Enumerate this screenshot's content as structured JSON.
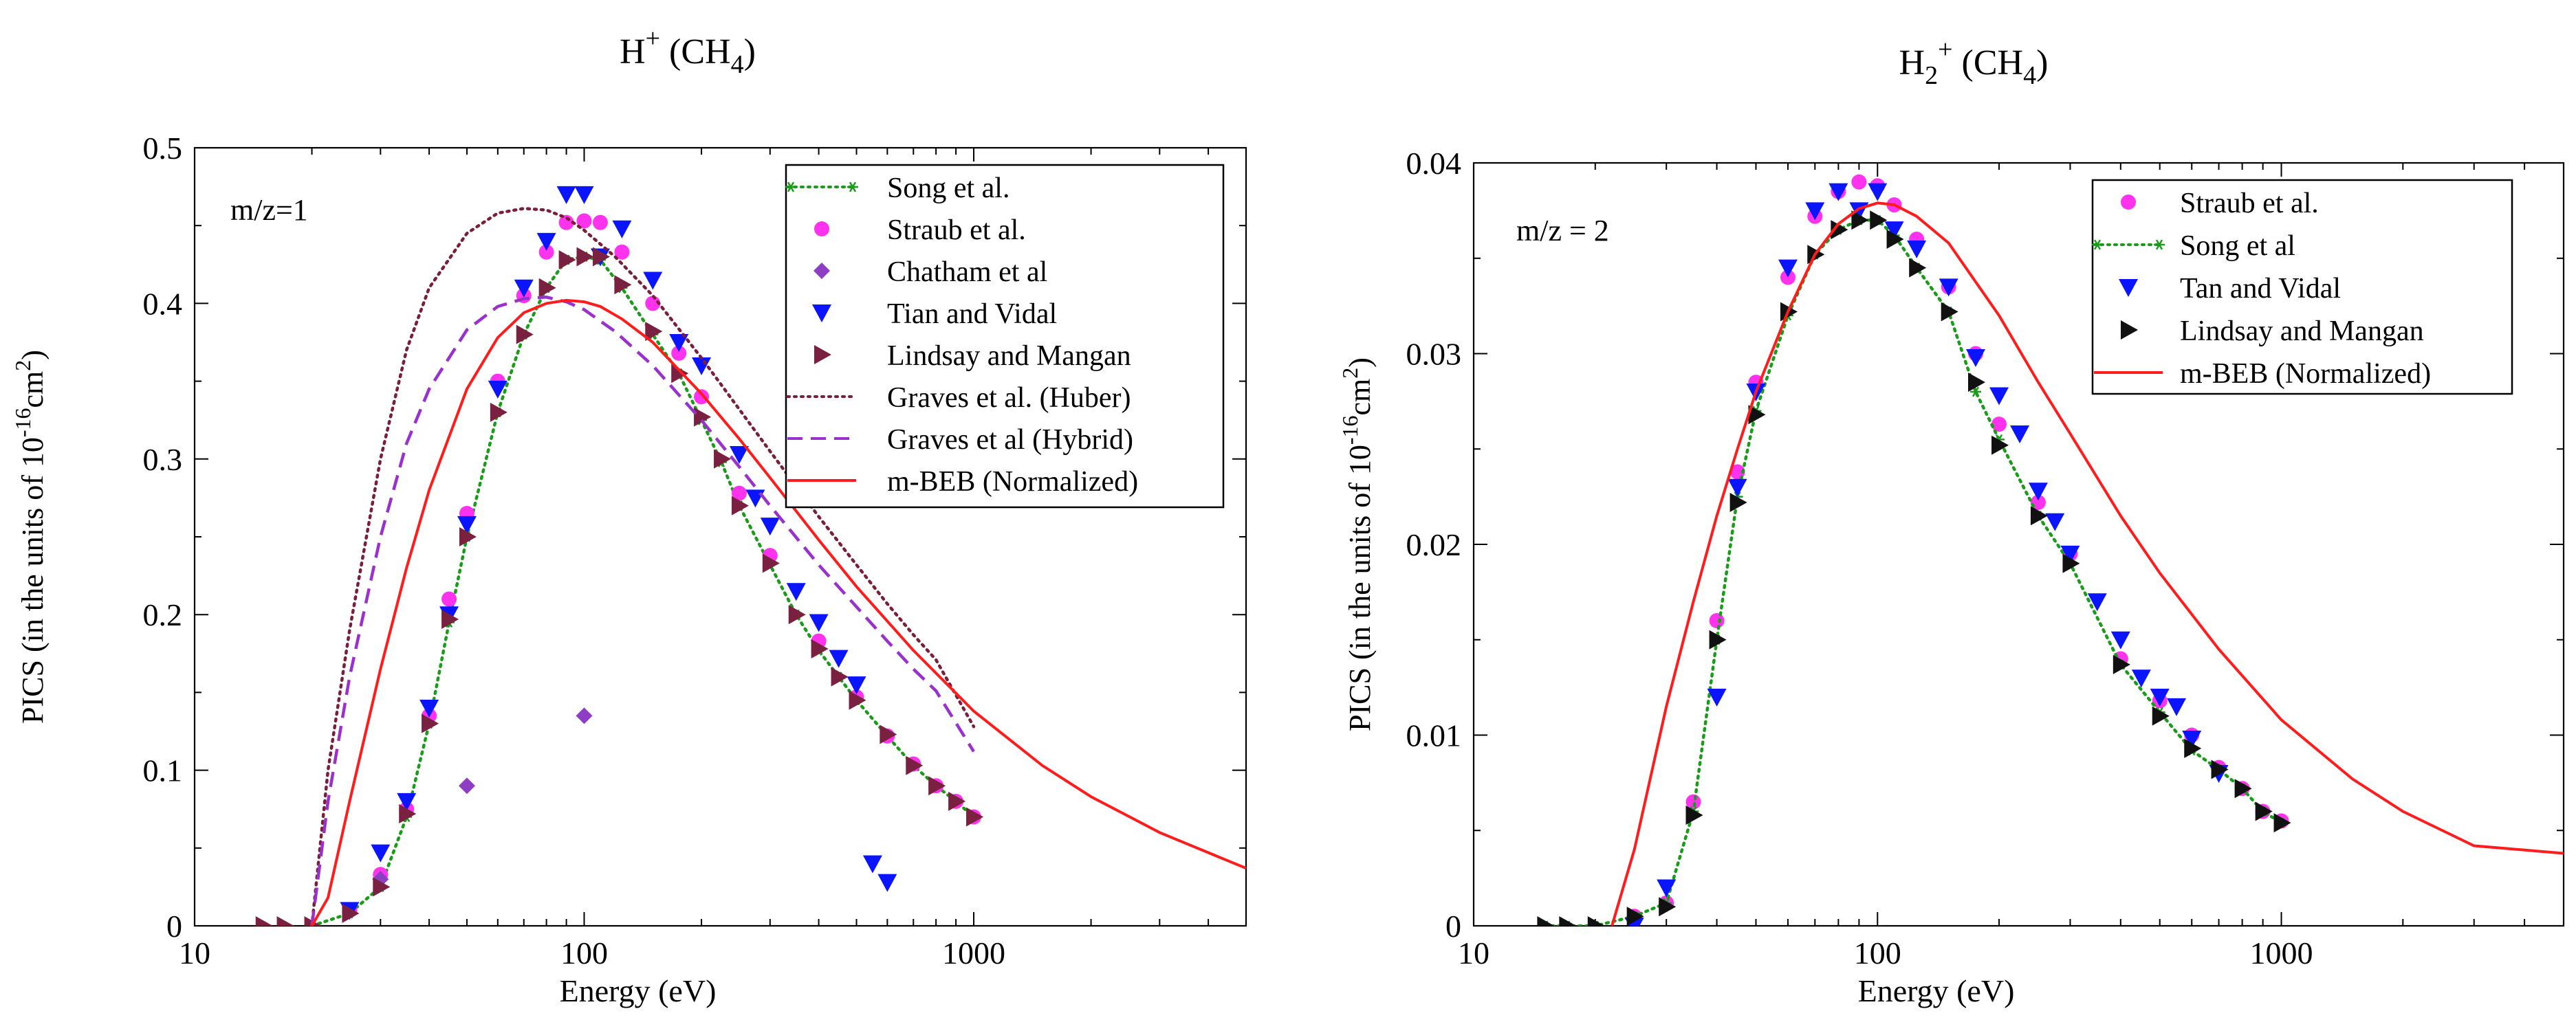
{
  "chart_data": [
    {
      "type": "scatter",
      "title_main": "H",
      "title_sup": "+",
      "title_rest": "(CH",
      "title_sub": "4",
      "title_close": ")",
      "annotation": "m/z=1",
      "xlabel": "Energy (eV)",
      "ylabel_pre": "PICS (in the units of 10",
      "ylabel_exp": "-16",
      "ylabel_mid": "cm",
      "ylabel_exp2": "2",
      "ylabel_post": ")",
      "xscale": "log",
      "xlim": [
        10,
        5000
      ],
      "ylim": [
        0,
        0.5
      ],
      "xticks": [
        10,
        100,
        1000
      ],
      "xtick_labels": [
        "10",
        "100",
        "1000"
      ],
      "yticks": [
        0,
        0.1,
        0.2,
        0.3,
        0.4,
        0.5
      ],
      "ytick_labels": [
        "0",
        "0.1",
        "0.2",
        "0.3",
        "0.4",
        "0.5"
      ],
      "legend_position": "top-right",
      "series": [
        {
          "name": "Song et al.",
          "style": "dotted-line-star",
          "color": "#1a9c1a",
          "x": [
            20,
            25,
            30,
            35,
            40,
            45,
            50,
            60,
            70,
            80,
            90,
            100,
            110,
            125,
            150,
            175,
            200,
            225,
            250,
            300,
            350,
            400,
            450,
            500,
            600,
            700,
            800,
            900,
            1000
          ],
          "y": [
            0.0,
            0.008,
            0.025,
            0.07,
            0.13,
            0.195,
            0.25,
            0.33,
            0.38,
            0.41,
            0.428,
            0.43,
            0.428,
            0.41,
            0.38,
            0.355,
            0.325,
            0.298,
            0.27,
            0.232,
            0.2,
            0.177,
            0.16,
            0.145,
            0.122,
            0.103,
            0.09,
            0.08,
            0.07
          ]
        },
        {
          "name": "Straub et al.",
          "style": "circle",
          "color": "#ff33ee",
          "x": [
            25,
            30,
            35,
            40,
            45,
            50,
            60,
            70,
            80,
            90,
            100,
            110,
            125,
            150,
            175,
            200,
            250,
            300,
            400,
            500,
            600,
            700,
            800,
            900,
            1000
          ],
          "y": [
            0.01,
            0.033,
            0.075,
            0.135,
            0.21,
            0.265,
            0.35,
            0.405,
            0.433,
            0.452,
            0.453,
            0.452,
            0.433,
            0.4,
            0.368,
            0.34,
            0.278,
            0.238,
            0.183,
            0.147,
            0.122,
            0.104,
            0.09,
            0.08,
            0.07
          ]
        },
        {
          "name": "Chatham et al",
          "style": "diamond",
          "color": "#8e3ec2",
          "x": [
            30,
            50,
            100
          ],
          "y": [
            0.03,
            0.09,
            0.135
          ]
        },
        {
          "name": "Tian and Vidal",
          "style": "triangle-down",
          "color": "#0a14ff",
          "x": [
            25,
            30,
            35,
            40,
            45,
            50,
            60,
            70,
            80,
            90,
            100,
            110,
            125,
            150,
            175,
            200,
            250,
            275,
            300,
            350,
            400,
            450,
            500,
            550,
            600
          ],
          "y": [
            0.01,
            0.047,
            0.08,
            0.14,
            0.2,
            0.258,
            0.345,
            0.41,
            0.44,
            0.47,
            0.47,
            0.43,
            0.448,
            0.415,
            0.375,
            0.36,
            0.303,
            0.275,
            0.257,
            0.215,
            0.195,
            0.172,
            0.155,
            0.04,
            0.028
          ]
        },
        {
          "name": "Lindsay and Mangan",
          "style": "triangle-right",
          "color": "#7a2040",
          "x": [
            15,
            17,
            20,
            25,
            30,
            35,
            40,
            45,
            50,
            60,
            70,
            80,
            90,
            100,
            110,
            125,
            150,
            175,
            200,
            225,
            250,
            300,
            350,
            400,
            450,
            500,
            600,
            700,
            800,
            900,
            1000
          ],
          "y": [
            0.0,
            0.0,
            0.0,
            0.008,
            0.025,
            0.072,
            0.13,
            0.197,
            0.25,
            0.33,
            0.38,
            0.41,
            0.428,
            0.43,
            0.43,
            0.412,
            0.382,
            0.355,
            0.327,
            0.3,
            0.27,
            0.233,
            0.2,
            0.178,
            0.16,
            0.145,
            0.123,
            0.103,
            0.09,
            0.08,
            0.07
          ]
        },
        {
          "name": "Graves et al. (Huber)",
          "style": "dotted-line",
          "color": "#7a1f3a",
          "x": [
            20,
            22,
            25,
            30,
            35,
            40,
            50,
            60,
            70,
            80,
            90,
            100,
            120,
            150,
            200,
            250,
            300,
            400,
            500,
            600,
            700,
            800,
            1000
          ],
          "y": [
            0.0,
            0.1,
            0.19,
            0.3,
            0.37,
            0.41,
            0.445,
            0.458,
            0.461,
            0.46,
            0.455,
            0.447,
            0.43,
            0.405,
            0.365,
            0.332,
            0.305,
            0.263,
            0.232,
            0.207,
            0.187,
            0.171,
            0.128
          ]
        },
        {
          "name": "Graves et al (Hybrid)",
          "style": "dashed-line",
          "color": "#9932cc",
          "x": [
            20,
            22,
            25,
            30,
            35,
            40,
            50,
            60,
            70,
            80,
            90,
            100,
            120,
            150,
            200,
            250,
            300,
            400,
            500,
            600,
            700,
            800,
            1000
          ],
          "y": [
            0.0,
            0.08,
            0.16,
            0.25,
            0.31,
            0.345,
            0.383,
            0.398,
            0.403,
            0.404,
            0.401,
            0.396,
            0.382,
            0.36,
            0.325,
            0.295,
            0.27,
            0.232,
            0.205,
            0.183,
            0.165,
            0.151,
            0.112
          ]
        },
        {
          "name": "m-BEB (Normalized)",
          "style": "solid-line",
          "color": "#ff1c1c",
          "x": [
            20,
            22,
            25,
            30,
            35,
            40,
            50,
            60,
            70,
            80,
            90,
            100,
            110,
            125,
            150,
            200,
            250,
            300,
            400,
            500,
            700,
            1000,
            1500,
            2000,
            3000,
            5000
          ],
          "y": [
            0.0,
            0.018,
            0.08,
            0.165,
            0.23,
            0.28,
            0.345,
            0.378,
            0.394,
            0.4,
            0.402,
            0.401,
            0.398,
            0.39,
            0.375,
            0.342,
            0.313,
            0.288,
            0.248,
            0.218,
            0.177,
            0.138,
            0.103,
            0.083,
            0.06,
            0.037
          ]
        }
      ]
    },
    {
      "type": "scatter",
      "title_main": "H",
      "title_sub_pre": "2",
      "title_sup": "+",
      "title_rest": "(CH",
      "title_sub": "4",
      "title_close": ")",
      "annotation": "m/z = 2",
      "xlabel": "Energy (eV)",
      "ylabel_pre": "PICS (in the units of 10",
      "ylabel_exp": "-16",
      "ylabel_mid": "cm",
      "ylabel_exp2": "2",
      "ylabel_post": ")",
      "xscale": "log",
      "xlim": [
        10,
        5000
      ],
      "ylim": [
        0,
        0.04
      ],
      "xticks": [
        10,
        100,
        1000
      ],
      "xtick_labels": [
        "10",
        "100",
        "1000"
      ],
      "yticks": [
        0,
        0.01,
        0.02,
        0.03,
        0.04
      ],
      "ytick_labels": [
        "0",
        "0.01",
        "0.02",
        "0.03",
        "0.04"
      ],
      "legend_position": "top-right",
      "series": [
        {
          "name": "Straub et al.",
          "style": "circle",
          "color": "#ff33ee",
          "x": [
            25,
            30,
            35,
            40,
            45,
            50,
            60,
            70,
            80,
            90,
            100,
            110,
            125,
            150,
            175,
            200,
            250,
            300,
            400,
            500,
            600,
            700,
            800,
            900,
            1000
          ],
          "y": [
            0.0005,
            0.0012,
            0.0065,
            0.016,
            0.0238,
            0.0285,
            0.034,
            0.0372,
            0.0385,
            0.039,
            0.0388,
            0.0378,
            0.036,
            0.0335,
            0.03,
            0.0263,
            0.0222,
            0.0195,
            0.014,
            0.0118,
            0.01,
            0.0083,
            0.0072,
            0.006,
            0.0055
          ]
        },
        {
          "name": "Song et al",
          "style": "dotted-line-star",
          "color": "#1a9c1a",
          "x": [
            15,
            17,
            20,
            25,
            30,
            35,
            40,
            45,
            50,
            60,
            70,
            80,
            90,
            100,
            110,
            125,
            150,
            175,
            200,
            250,
            300,
            400,
            500,
            600,
            700,
            800,
            900,
            1000
          ],
          "y": [
            0.0,
            0.0,
            0.0,
            0.0005,
            0.0012,
            0.006,
            0.015,
            0.0225,
            0.027,
            0.032,
            0.0352,
            0.0365,
            0.037,
            0.037,
            0.0362,
            0.0345,
            0.0322,
            0.028,
            0.0255,
            0.0215,
            0.019,
            0.0137,
            0.0112,
            0.0092,
            0.0082,
            0.0072,
            0.006,
            0.0054
          ]
        },
        {
          "name": "Tan and Vidal",
          "style": "triangle-down",
          "color": "#0a14ff",
          "x": [
            25,
            30,
            40,
            45,
            50,
            60,
            70,
            80,
            90,
            100,
            110,
            125,
            150,
            175,
            200,
            225,
            250,
            275,
            300,
            350,
            400,
            450,
            500,
            550,
            600,
            700
          ],
          "y": [
            0.0,
            0.002,
            0.012,
            0.023,
            0.028,
            0.0345,
            0.0375,
            0.0385,
            0.0375,
            0.0385,
            0.0365,
            0.0355,
            0.0335,
            0.0298,
            0.0278,
            0.0258,
            0.0228,
            0.0212,
            0.0195,
            0.017,
            0.015,
            0.013,
            0.012,
            0.0115,
            0.0098,
            0.008
          ]
        },
        {
          "name": "Lindsay and Mangan",
          "style": "triangle-right",
          "color": "#111111",
          "x": [
            15,
            17,
            20,
            25,
            30,
            35,
            40,
            45,
            50,
            60,
            70,
            80,
            90,
            100,
            110,
            125,
            150,
            175,
            200,
            250,
            300,
            400,
            500,
            600,
            700,
            800,
            900,
            1000
          ],
          "y": [
            0.0,
            0.0,
            0.0,
            0.0005,
            0.001,
            0.0058,
            0.015,
            0.0222,
            0.0268,
            0.0322,
            0.0352,
            0.0365,
            0.037,
            0.037,
            0.036,
            0.0345,
            0.0322,
            0.0285,
            0.0252,
            0.0215,
            0.019,
            0.0137,
            0.011,
            0.0093,
            0.0082,
            0.0072,
            0.006,
            0.0054
          ]
        },
        {
          "name": "m-BEB (Normalized)",
          "style": "solid-line",
          "color": "#ff1c1c",
          "x": [
            22,
            25,
            30,
            35,
            40,
            45,
            50,
            60,
            70,
            80,
            90,
            100,
            110,
            125,
            150,
            200,
            250,
            300,
            400,
            500,
            700,
            1000,
            1500,
            2000,
            3000,
            5000
          ],
          "y": [
            0.0,
            0.004,
            0.0115,
            0.017,
            0.0215,
            0.025,
            0.028,
            0.0322,
            0.0352,
            0.0368,
            0.0376,
            0.0379,
            0.0378,
            0.0372,
            0.0358,
            0.032,
            0.0285,
            0.0258,
            0.0215,
            0.0185,
            0.0145,
            0.0108,
            0.0077,
            0.006,
            0.0042,
            0.0038
          ]
        }
      ]
    }
  ]
}
